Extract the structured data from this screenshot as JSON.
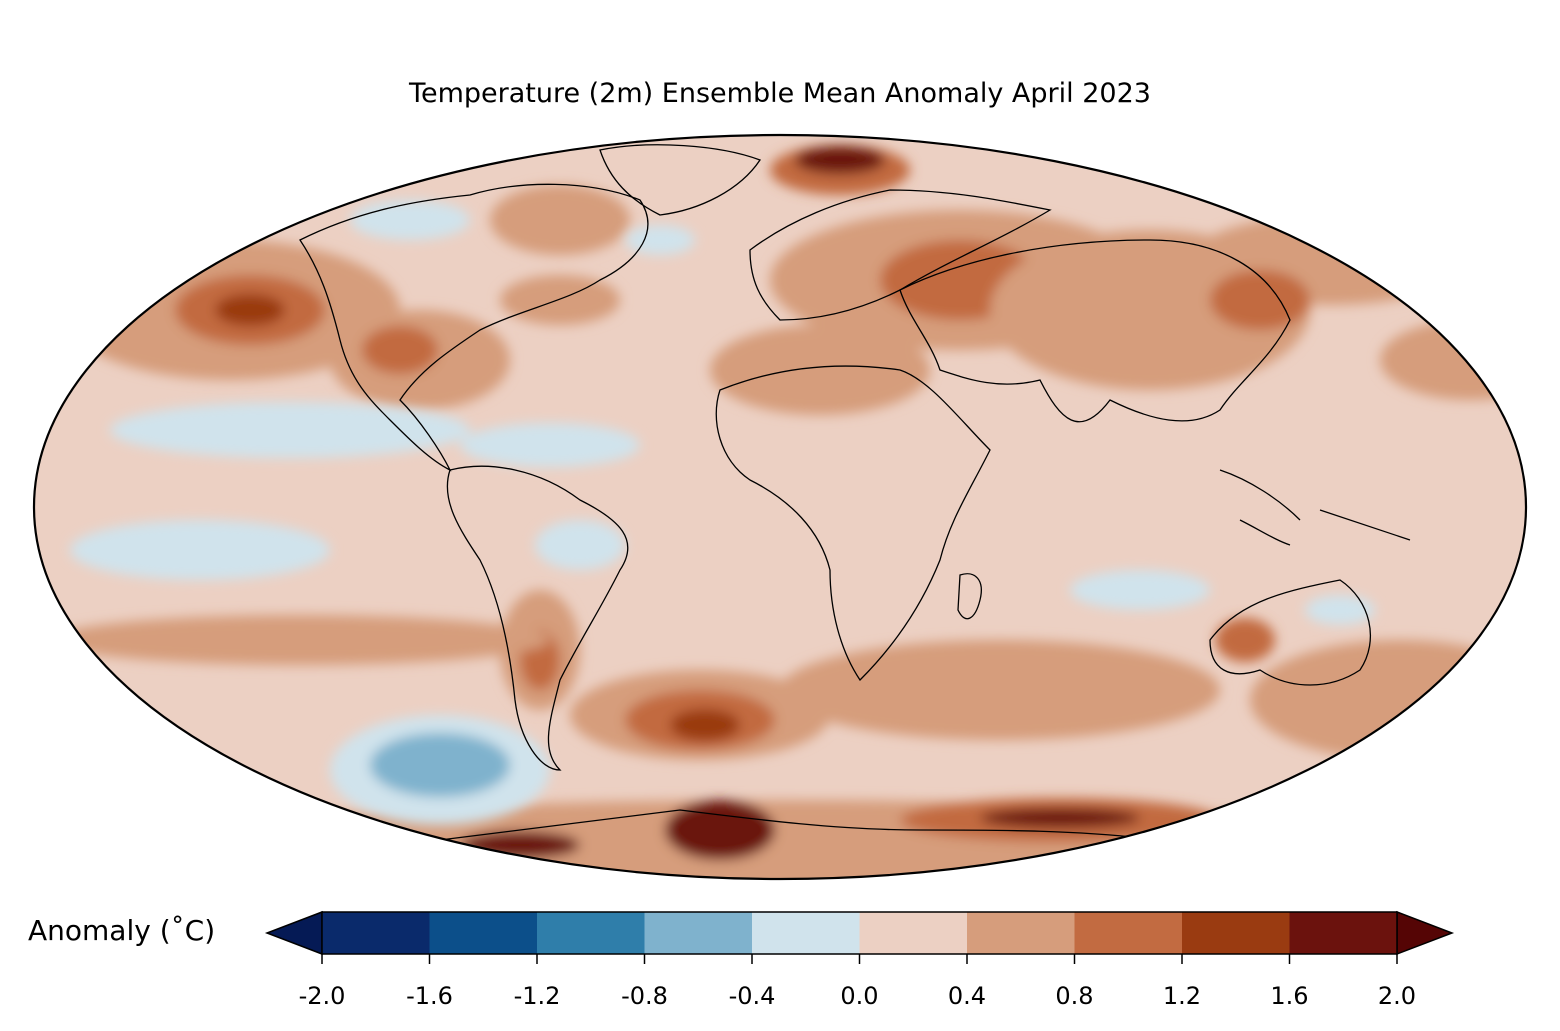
{
  "title": "Temperature (2m) Ensemble Mean Anomaly April 2023",
  "projection": "mollweide",
  "colorbar": {
    "label": "Anomaly (˚C)",
    "ticks": [
      "-2.0",
      "-1.6",
      "-1.2",
      "-0.8",
      "-0.4",
      "0.0",
      "0.4",
      "0.8",
      "1.2",
      "1.6",
      "2.0"
    ],
    "levels": [
      -2.0,
      -1.6,
      -1.2,
      -0.8,
      -0.4,
      0.0,
      0.4,
      0.8,
      1.2,
      1.6,
      2.0
    ],
    "colors": [
      "#0a2a6b",
      "#0c4f8a",
      "#2f7eaa",
      "#7fb2cd",
      "#d0e3ec",
      "#ecd0c3",
      "#d69d7c",
      "#c26b41",
      "#9a3b11",
      "#6b120d"
    ],
    "under_color": "#051a55",
    "over_color": "#550505",
    "extend": "both"
  }
}
